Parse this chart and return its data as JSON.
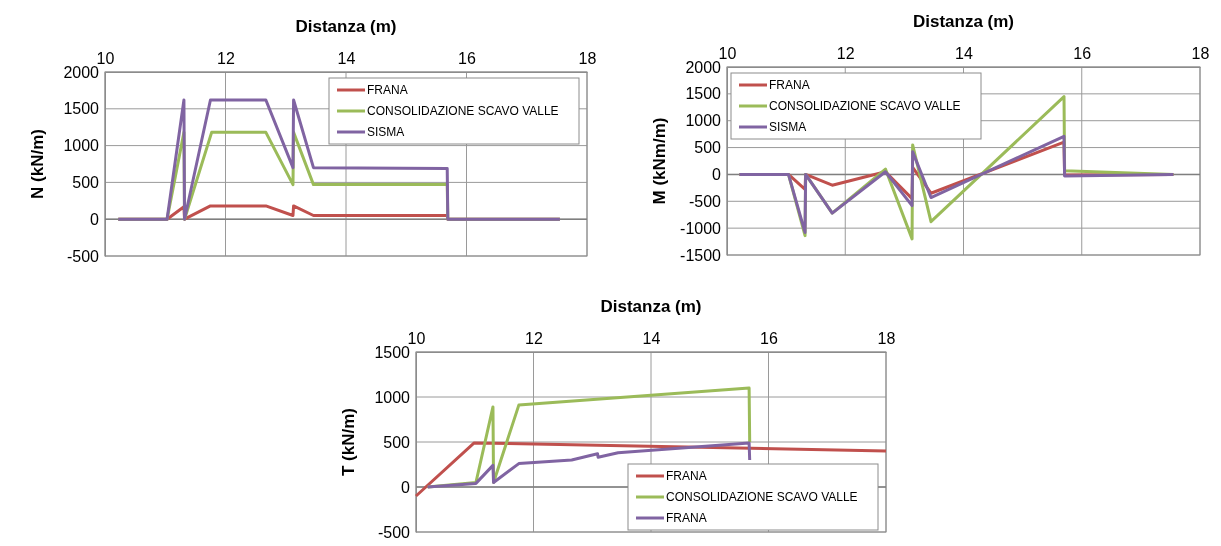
{
  "chart_data": [
    {
      "type": "line",
      "xlabel": "Distanza (m)",
      "ylabel": "N (kN/m)",
      "xlim": [
        10,
        18
      ],
      "xticks": [
        10,
        12,
        14,
        16,
        18
      ],
      "ylim": [
        -500,
        2000
      ],
      "yticks": [
        -500,
        0,
        500,
        1000,
        1500,
        2000
      ],
      "grid": true,
      "legend": "top right",
      "marker": "none",
      "line_style": "solid",
      "series": [
        {
          "name": "FRANA",
          "color": "#c0504d",
          "x": [
            10.22,
            11.03,
            11.31,
            11.32,
            11.75,
            12.67,
            13.12,
            13.13,
            13.46,
            15.68,
            15.69,
            17.55
          ],
          "values": [
            0,
            0,
            170,
            0,
            180,
            180,
            50,
            180,
            50,
            50,
            0,
            0
          ]
        },
        {
          "name": "CONSOLIDAZIONE SCAVO VALLE",
          "color": "#9bbb59",
          "x": [
            10.22,
            11.03,
            11.31,
            11.32,
            11.77,
            12.67,
            13.12,
            13.13,
            13.46,
            15.68,
            15.69,
            17.55
          ],
          "values": [
            0,
            0,
            1180,
            0,
            1180,
            1180,
            470,
            1180,
            470,
            470,
            0,
            0
          ]
        },
        {
          "name": "SISMA",
          "color": "#8064a2",
          "x": [
            10.22,
            11.03,
            11.31,
            11.32,
            11.75,
            12.67,
            13.12,
            13.13,
            13.46,
            15.68,
            15.69,
            17.55
          ],
          "values": [
            0,
            0,
            1620,
            0,
            1620,
            1620,
            700,
            1620,
            700,
            690,
            0,
            0
          ]
        }
      ]
    },
    {
      "type": "line",
      "xlabel": "Distanza (m)",
      "ylabel": "M (kNm/m)",
      "xlim": [
        10,
        18
      ],
      "xticks": [
        10,
        12,
        14,
        16,
        18
      ],
      "ylim": [
        -1500,
        2000
      ],
      "yticks": [
        -1500,
        -1000,
        -500,
        0,
        500,
        1000,
        1500,
        2000
      ],
      "grid": true,
      "legend": "top left",
      "marker": "none",
      "line_style": "solid",
      "series": [
        {
          "name": "FRANA",
          "color": "#c0504d",
          "x": [
            10.21,
            11.04,
            11.32,
            11.33,
            11.78,
            12.68,
            13.13,
            13.14,
            13.45,
            15.7,
            15.71,
            17.55
          ],
          "values": [
            0,
            0,
            -280,
            0,
            -200,
            50,
            -450,
            130,
            -350,
            600,
            -10,
            0
          ]
        },
        {
          "name": "CONSOLIDAZIONE SCAVO VALLE",
          "color": "#9bbb59",
          "x": [
            10.21,
            11.04,
            11.32,
            11.33,
            11.78,
            12.68,
            13.13,
            13.14,
            13.45,
            15.7,
            15.71,
            17.55
          ],
          "values": [
            0,
            0,
            -1140,
            0,
            -720,
            100,
            -1200,
            550,
            -880,
            1450,
            70,
            0
          ]
        },
        {
          "name": "SISMA",
          "color": "#8064a2",
          "x": [
            10.21,
            11.04,
            11.32,
            11.33,
            11.78,
            12.68,
            13.13,
            13.14,
            13.45,
            15.7,
            15.71,
            17.55
          ],
          "values": [
            0,
            0,
            -1080,
            0,
            -720,
            50,
            -580,
            420,
            -430,
            710,
            -30,
            0
          ]
        }
      ]
    },
    {
      "type": "line",
      "xlabel": "Distanza (m)",
      "ylabel": "T (kN/m)",
      "xlim": [
        10,
        18
      ],
      "xticks": [
        10,
        12,
        14,
        16,
        18
      ],
      "ylim": [
        -500,
        1500
      ],
      "yticks": [
        -500,
        0,
        500,
        1000,
        1500
      ],
      "grid": true,
      "legend": "bottom right",
      "marker": "none",
      "line_style": "solid",
      "series": [
        {
          "name": "FRANA",
          "color": "#c0504d",
          "x": [
            10,
            10.99,
            18
          ],
          "values": [
            -100,
            490,
            400
          ]
        },
        {
          "name": "CONSOLIDAZIONE SCAVO VALLE",
          "color": "#9bbb59",
          "x": [
            10.2,
            11.02,
            11.31,
            11.32,
            11.75,
            15.67,
            15.68
          ],
          "values": [
            0,
            50,
            890,
            50,
            910,
            1100,
            500
          ]
        },
        {
          "name": "FRANA",
          "color": "#8064a2",
          "x": [
            10.2,
            11.02,
            11.31,
            11.32,
            11.75,
            12.65,
            13.09,
            13.1,
            13.44,
            15.67,
            15.68
          ],
          "values": [
            0,
            40,
            240,
            50,
            260,
            300,
            370,
            330,
            380,
            490,
            300
          ]
        }
      ]
    }
  ]
}
